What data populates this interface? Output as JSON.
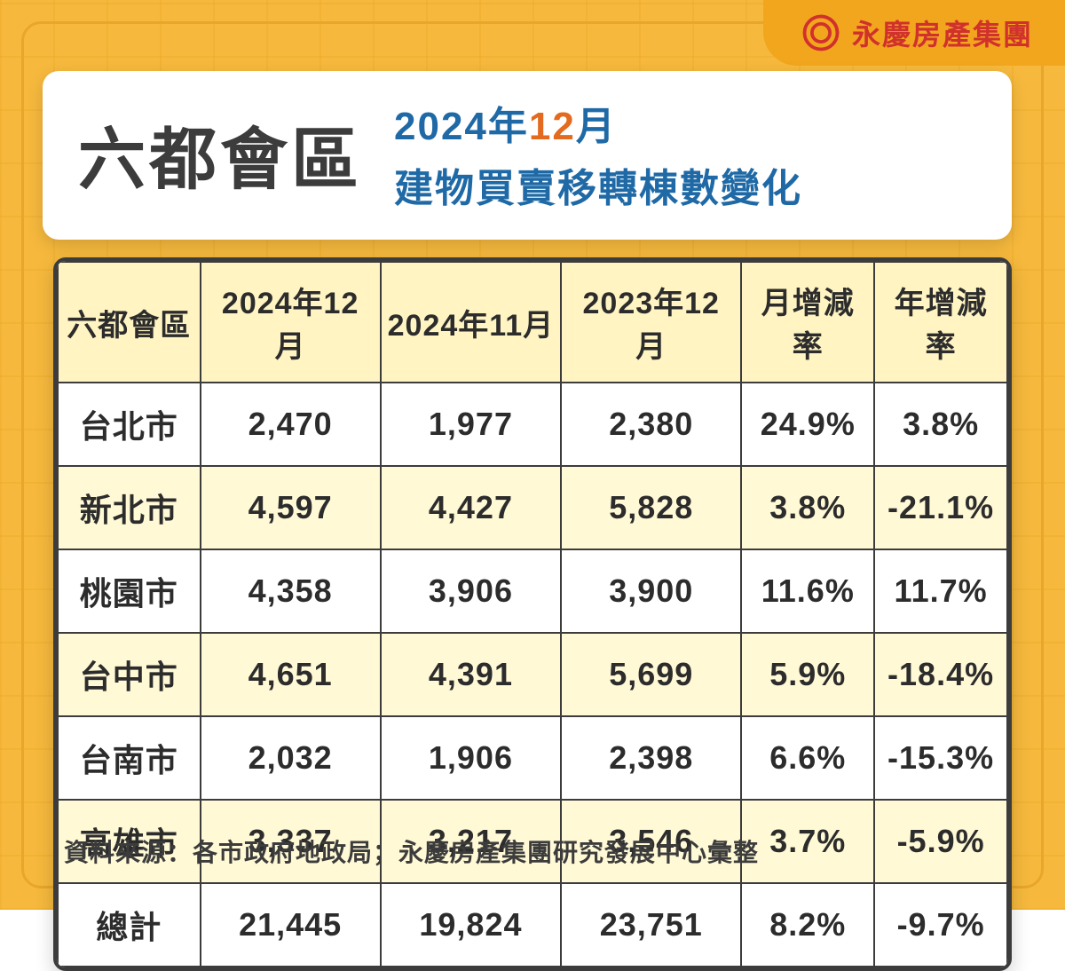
{
  "brand": {
    "text": "永慶房產集團",
    "logo_color": "#d0312d",
    "tab_bg": "#f2a61d"
  },
  "title": {
    "main": "六都會區",
    "line1_pre": "2024年",
    "line1_accent": "12",
    "line1_post": "月",
    "line2": "建物買賣移轉棟數變化",
    "main_color": "#3c3c3c",
    "sub_color": "#1f6aa6",
    "accent_color": "#e36a1f"
  },
  "table": {
    "type": "table",
    "header_bg": "#fff4c2",
    "alt_row_bg": "#fff9d6",
    "plain_row_bg": "#ffffff",
    "border_color": "#3c3c3c",
    "columns": [
      "六都會區",
      "2024年12月",
      "2024年11月",
      "2023年12月",
      "月增減率",
      "年增減率"
    ],
    "rows": [
      {
        "alt": false,
        "cells": [
          "台北市",
          "2,470",
          "1,977",
          "2,380",
          "24.9%",
          "3.8%"
        ]
      },
      {
        "alt": true,
        "cells": [
          "新北市",
          "4,597",
          "4,427",
          "5,828",
          "3.8%",
          "-21.1%"
        ]
      },
      {
        "alt": false,
        "cells": [
          "桃園市",
          "4,358",
          "3,906",
          "3,900",
          "11.6%",
          "11.7%"
        ]
      },
      {
        "alt": true,
        "cells": [
          "台中市",
          "4,651",
          "4,391",
          "5,699",
          "5.9%",
          "-18.4%"
        ]
      },
      {
        "alt": false,
        "cells": [
          "台南市",
          "2,032",
          "1,906",
          "2,398",
          "6.6%",
          "-15.3%"
        ]
      },
      {
        "alt": true,
        "cells": [
          "高雄市",
          "3,337",
          "3,217",
          "3,546",
          "3.7%",
          "-5.9%"
        ]
      },
      {
        "alt": false,
        "cells": [
          "總計",
          "21,445",
          "19,824",
          "23,751",
          "8.2%",
          "-9.7%"
        ]
      }
    ]
  },
  "footer": {
    "text": "資料來源：各市政府地政局；永慶房產集團研究發展中心彙整"
  },
  "style": {
    "canvas_bg": "#f6b93d",
    "grid_line": "rgba(230,160,30,0.25)",
    "inner_border": "#e8a62a"
  }
}
